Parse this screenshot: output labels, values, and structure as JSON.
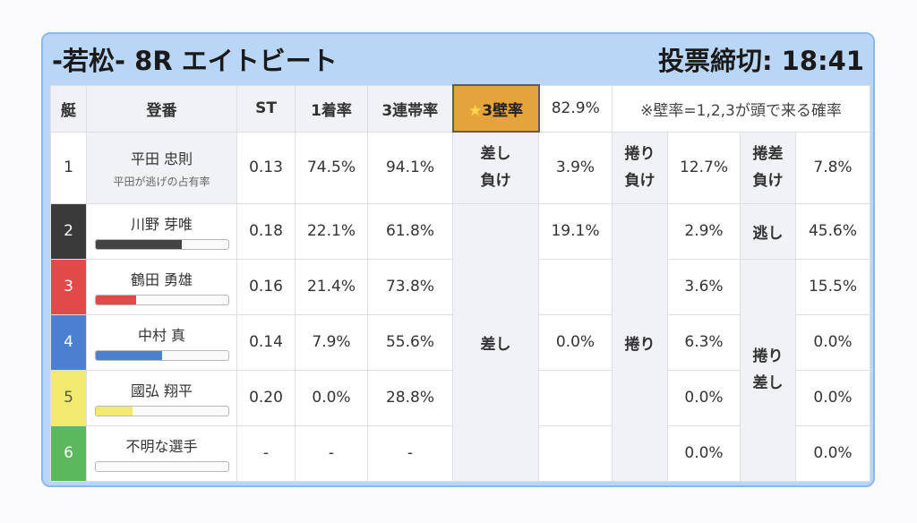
{
  "header": {
    "title": "-若松- 8R エイトビート",
    "deadline": "投票締切: 18:41"
  },
  "columns": {
    "lane": "艇",
    "racer": "登番",
    "st": "ST",
    "first": "1着率",
    "trio": "3連帯率",
    "wall_star": "★",
    "wall_label": "3壁率",
    "wall_value": "82.9%",
    "note": "※壁率=1,2,3が頭で来る確率"
  },
  "rows": [
    {
      "lane": "1",
      "name": "平田 忠則",
      "sub": "平田が逃げの占有率",
      "st": "0.13",
      "first": "74.5%",
      "trio": "94.1%",
      "bar": null
    },
    {
      "lane": "2",
      "name": "川野 芽唯",
      "st": "0.18",
      "first": "22.1%",
      "trio": "61.8%",
      "bar": {
        "pct": 65,
        "color": "#444444"
      }
    },
    {
      "lane": "3",
      "name": "鶴田 勇雄",
      "st": "0.16",
      "first": "21.4%",
      "trio": "73.8%",
      "bar": {
        "pct": 31,
        "color": "#e24a4a"
      }
    },
    {
      "lane": "4",
      "name": "中村 真",
      "st": "0.14",
      "first": "7.9%",
      "trio": "55.6%",
      "bar": {
        "pct": 50,
        "color": "#4b7fcf"
      }
    },
    {
      "lane": "5",
      "name": "國弘 翔平",
      "st": "0.20",
      "first": "0.0%",
      "trio": "28.8%",
      "bar": {
        "pct": 28,
        "color": "#f2ea6e"
      }
    },
    {
      "lane": "6",
      "name": "不明な選手",
      "st": "-",
      "first": "-",
      "trio": "-",
      "bar": {
        "pct": 0,
        "color": "#cccccc"
      }
    }
  ],
  "patterns": {
    "sashi_make": {
      "label1": "差し",
      "label2": "負け",
      "value": "3.9%"
    },
    "makuri_make": {
      "label1": "捲り",
      "label2": "負け",
      "value": "12.7%"
    },
    "makurisashi_make": {
      "label1": "捲差",
      "label2": "負け",
      "value": "7.8%"
    },
    "sashi": {
      "label": "差し",
      "values": [
        "19.1%",
        "",
        "0.0%",
        "",
        ""
      ]
    },
    "makuri": {
      "label": "捲り",
      "values": [
        "2.9%",
        "3.6%",
        "6.3%",
        "0.0%",
        "0.0%"
      ]
    },
    "nige": {
      "label": "逃し",
      "value": "45.6%"
    },
    "makurisashi": {
      "label1": "捲り",
      "label2": "差し",
      "values": [
        "15.5%",
        "0.0%",
        "0.0%",
        "0.0%"
      ]
    }
  }
}
